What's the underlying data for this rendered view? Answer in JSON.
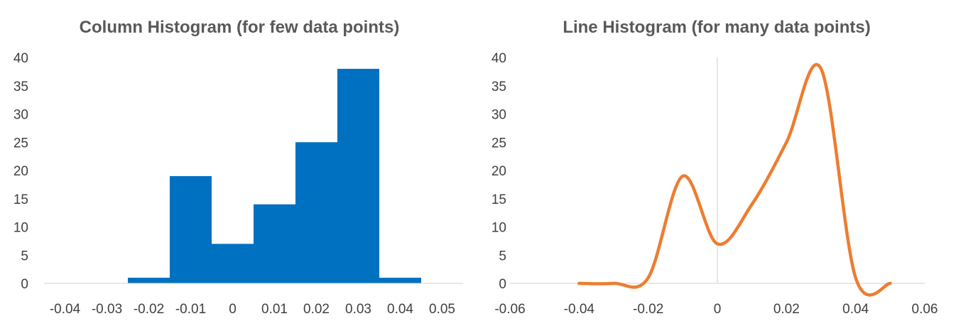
{
  "chart_data": [
    {
      "type": "bar",
      "title": "Column Histogram (for few data points)",
      "xlabel": "",
      "ylabel": "",
      "color": "#0070C0",
      "xlim": [
        -0.045,
        0.055
      ],
      "ylim": [
        0,
        40
      ],
      "y_ticks": [
        "0",
        "5",
        "10",
        "15",
        "20",
        "25",
        "30",
        "35",
        "40"
      ],
      "x_ticks": [
        "-0.04",
        "-0.03",
        "-0.02",
        "-0.01",
        "0",
        "0.01",
        "0.02",
        "0.03",
        "0.04",
        "0.05"
      ],
      "x_tick_values": [
        -0.04,
        -0.03,
        -0.02,
        -0.01,
        0,
        0.01,
        0.02,
        0.03,
        0.04,
        0.05
      ],
      "bin_width": 0.01,
      "bins": [
        {
          "center": -0.04,
          "value": 0
        },
        {
          "center": -0.03,
          "value": 0
        },
        {
          "center": -0.02,
          "value": 1
        },
        {
          "center": -0.01,
          "value": 19
        },
        {
          "center": 0.0,
          "value": 7
        },
        {
          "center": 0.01,
          "value": 14
        },
        {
          "center": 0.02,
          "value": 25
        },
        {
          "center": 0.03,
          "value": 38
        },
        {
          "center": 0.04,
          "value": 1
        }
      ],
      "grid": false,
      "legend": "none"
    },
    {
      "type": "line",
      "title": "Line Histogram (for many data points)",
      "xlabel": "",
      "ylabel": "",
      "color": "#ED7D31",
      "xlim": [
        -0.06,
        0.06
      ],
      "ylim": [
        0,
        40
      ],
      "y_ticks": [
        "0",
        "5",
        "10",
        "15",
        "20",
        "25",
        "30",
        "35",
        "40"
      ],
      "x_ticks": [
        "-0.06",
        "-0.04",
        "-0.02",
        "0",
        "0.02",
        "0.04",
        "0.06"
      ],
      "x_tick_values": [
        -0.06,
        -0.04,
        -0.02,
        0,
        0.02,
        0.04,
        0.06
      ],
      "points": [
        {
          "x": -0.04,
          "y": 0
        },
        {
          "x": -0.03,
          "y": 0
        },
        {
          "x": -0.02,
          "y": 1
        },
        {
          "x": -0.01,
          "y": 19
        },
        {
          "x": 0.0,
          "y": 7
        },
        {
          "x": 0.01,
          "y": 14
        },
        {
          "x": 0.02,
          "y": 25
        },
        {
          "x": 0.03,
          "y": 38
        },
        {
          "x": 0.04,
          "y": 1
        },
        {
          "x": 0.05,
          "y": 0
        }
      ],
      "smooth": true,
      "grid": false,
      "legend": "none"
    }
  ]
}
